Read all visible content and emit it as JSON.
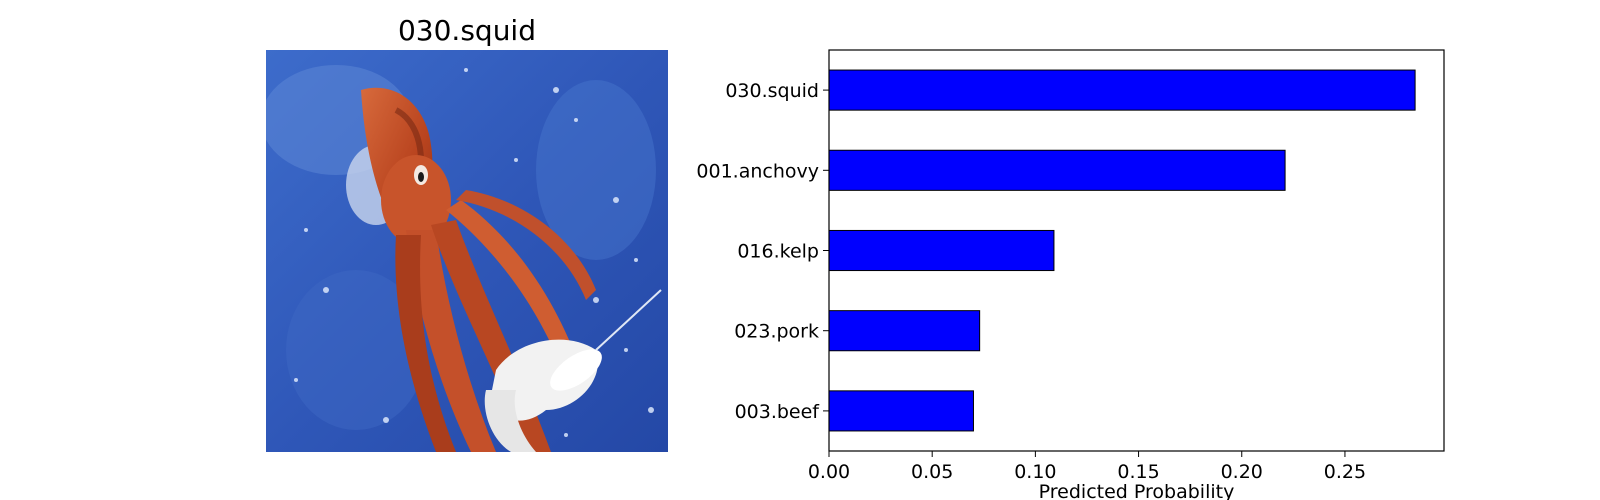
{
  "image_panel": {
    "title": "030.squid",
    "colors": {
      "water": "#2f57b8",
      "squid": "#c1502a",
      "squid_dark": "#7a2a14",
      "foam": "#f2f2f2"
    }
  },
  "chart_data": {
    "type": "bar",
    "orientation": "horizontal",
    "categories": [
      "030.squid",
      "001.anchovy",
      "016.kelp",
      "023.pork",
      "003.beef"
    ],
    "values": [
      0.284,
      0.221,
      0.109,
      0.073,
      0.07
    ],
    "xlabel": "Predicted Probability",
    "ylabel": "",
    "xlim": [
      0,
      0.298
    ],
    "xticks": [
      "0.00",
      "0.05",
      "0.10",
      "0.15",
      "0.20",
      "0.25"
    ],
    "xtick_values": [
      0,
      0.05,
      0.1,
      0.15,
      0.2,
      0.25
    ],
    "bar_color": "#0000ff",
    "edge_color": "#000000",
    "grid": false,
    "legend": "none"
  }
}
